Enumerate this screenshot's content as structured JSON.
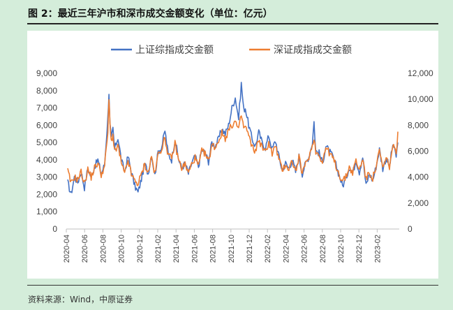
{
  "figure_title": "图 2：最近三年沪市和深市成交金额变化（单位：亿元）",
  "source_note": "资料来源：Wind，中原证券",
  "colors": {
    "sh": "#4472c4",
    "sz": "#ed7d31",
    "background": "#d4edda"
  },
  "chart_data": {
    "type": "line",
    "title": "",
    "xlabel": "",
    "ylabel_left": "",
    "ylabel_right": "",
    "y_left": {
      "range": [
        0,
        9000
      ],
      "ticks": [
        "0",
        "1,000",
        "2,000",
        "3,000",
        "4,000",
        "5,000",
        "6,000",
        "7,000",
        "8,000",
        "9,000"
      ]
    },
    "y_right": {
      "range": [
        0,
        12000
      ],
      "ticks": [
        "0",
        "2,000",
        "4,000",
        "6,000",
        "8,000",
        "10,000",
        "12,000"
      ]
    },
    "x_ticks": [
      "2020-04",
      "2020-06",
      "2020-08",
      "2020-10",
      "2020-12",
      "2021-02",
      "2021-04",
      "2021-06",
      "2021-08",
      "2021-10",
      "2021-12",
      "2022-02",
      "2022-04",
      "2022-06",
      "2022-08",
      "2022-10",
      "2022-12",
      "2023-02"
    ],
    "legend": [
      "上证综指成交金额",
      "深证成指成交金额"
    ],
    "legend_position": "top-center",
    "series": [
      {
        "name": "上证综指成交金额",
        "axis": "left",
        "anchors": [
          [
            0,
            2700
          ],
          [
            1,
            2000
          ],
          [
            2,
            3000
          ],
          [
            3,
            2700
          ],
          [
            4,
            3300
          ],
          [
            5,
            2400
          ],
          [
            6,
            3500
          ],
          [
            7,
            3000
          ],
          [
            8,
            3600
          ],
          [
            9,
            4000
          ],
          [
            10,
            3200
          ],
          [
            11,
            3700
          ],
          [
            12,
            6500
          ],
          [
            12.3,
            7900
          ],
          [
            12.6,
            6000
          ],
          [
            13,
            5200
          ],
          [
            13.5,
            5800
          ],
          [
            14,
            4600
          ],
          [
            15,
            5300
          ],
          [
            16,
            4000
          ],
          [
            17,
            3300
          ],
          [
            18,
            4200
          ],
          [
            19,
            3300
          ],
          [
            20,
            2500
          ],
          [
            21,
            2100
          ],
          [
            22,
            2900
          ],
          [
            23,
            3800
          ],
          [
            24,
            3200
          ],
          [
            25,
            4300
          ],
          [
            26,
            3100
          ],
          [
            27,
            4500
          ],
          [
            28,
            4700
          ],
          [
            29,
            5700
          ],
          [
            30,
            4300
          ],
          [
            31,
            4000
          ],
          [
            32,
            5200
          ],
          [
            33,
            4100
          ],
          [
            34,
            3500
          ],
          [
            35,
            3800
          ],
          [
            36,
            3200
          ],
          [
            37,
            3800
          ],
          [
            38,
            4200
          ],
          [
            39,
            3600
          ],
          [
            40,
            4600
          ],
          [
            41,
            4400
          ],
          [
            42,
            3900
          ],
          [
            43,
            5000
          ],
          [
            44,
            4800
          ],
          [
            45,
            5200
          ],
          [
            46,
            5800
          ],
          [
            47,
            5500
          ],
          [
            48,
            6000
          ],
          [
            49,
            7000
          ],
          [
            50,
            7600
          ],
          [
            51,
            6400
          ],
          [
            51.8,
            8400
          ],
          [
            52.5,
            6900
          ],
          [
            53,
            7000
          ],
          [
            54,
            6000
          ],
          [
            55,
            5200
          ],
          [
            56,
            4800
          ],
          [
            57,
            5600
          ],
          [
            58,
            5000
          ],
          [
            59,
            4700
          ],
          [
            60,
            5400
          ],
          [
            61,
            4600
          ],
          [
            62,
            5100
          ],
          [
            63,
            4200
          ],
          [
            64,
            3400
          ],
          [
            65,
            3800
          ],
          [
            66,
            3500
          ],
          [
            67,
            4000
          ],
          [
            68,
            3300
          ],
          [
            69,
            4200
          ],
          [
            70,
            3200
          ],
          [
            71,
            3800
          ],
          [
            72,
            4200
          ],
          [
            73,
            5000
          ],
          [
            73.5,
            6200
          ],
          [
            74,
            4500
          ],
          [
            75,
            4400
          ],
          [
            76,
            3800
          ],
          [
            77,
            4800
          ],
          [
            78,
            4500
          ],
          [
            79,
            4200
          ],
          [
            80,
            3700
          ],
          [
            81,
            3100
          ],
          [
            82,
            2500
          ],
          [
            83,
            2900
          ],
          [
            84,
            3600
          ],
          [
            85,
            3200
          ],
          [
            86,
            4000
          ],
          [
            87,
            3300
          ],
          [
            88,
            4200
          ],
          [
            89,
            2500
          ],
          [
            90,
            3200
          ],
          [
            91,
            2800
          ],
          [
            92,
            3600
          ],
          [
            93,
            4600
          ],
          [
            94,
            3500
          ],
          [
            95,
            4100
          ],
          [
            96,
            3600
          ],
          [
            97,
            4900
          ],
          [
            98,
            4200
          ],
          [
            98.5,
            5000
          ]
        ]
      },
      {
        "name": "深证成指成交金额",
        "axis": "right",
        "anchors": [
          [
            0,
            4500
          ],
          [
            1,
            3500
          ],
          [
            2,
            4000
          ],
          [
            3,
            3800
          ],
          [
            4,
            4400
          ],
          [
            5,
            3500
          ],
          [
            6,
            4600
          ],
          [
            7,
            4000
          ],
          [
            8,
            4700
          ],
          [
            9,
            5100
          ],
          [
            10,
            4200
          ],
          [
            11,
            4800
          ],
          [
            12,
            7500
          ],
          [
            12.3,
            10000
          ],
          [
            12.6,
            8200
          ],
          [
            13,
            6800
          ],
          [
            13.5,
            7200
          ],
          [
            14,
            5900
          ],
          [
            15,
            6400
          ],
          [
            16,
            5100
          ],
          [
            17,
            4200
          ],
          [
            18,
            5300
          ],
          [
            19,
            4200
          ],
          [
            20,
            3700
          ],
          [
            21,
            3500
          ],
          [
            22,
            4200
          ],
          [
            23,
            5000
          ],
          [
            24,
            4300
          ],
          [
            25,
            5600
          ],
          [
            26,
            4200
          ],
          [
            27,
            5800
          ],
          [
            28,
            6200
          ],
          [
            29,
            7000
          ],
          [
            30,
            5700
          ],
          [
            31,
            5400
          ],
          [
            32,
            6600
          ],
          [
            33,
            5400
          ],
          [
            34,
            4700
          ],
          [
            35,
            5000
          ],
          [
            36,
            4300
          ],
          [
            37,
            5000
          ],
          [
            38,
            5500
          ],
          [
            39,
            4800
          ],
          [
            40,
            6000
          ],
          [
            41,
            5800
          ],
          [
            42,
            5200
          ],
          [
            43,
            6500
          ],
          [
            44,
            6300
          ],
          [
            45,
            6800
          ],
          [
            46,
            7400
          ],
          [
            47,
            7000
          ],
          [
            48,
            7600
          ],
          [
            49,
            8000
          ],
          [
            50,
            8300
          ],
          [
            51,
            7600
          ],
          [
            51.8,
            8800
          ],
          [
            52.5,
            7800
          ],
          [
            53,
            7900
          ],
          [
            54,
            7200
          ],
          [
            55,
            6300
          ],
          [
            56,
            6000
          ],
          [
            57,
            6900
          ],
          [
            58,
            6300
          ],
          [
            59,
            5900
          ],
          [
            60,
            6700
          ],
          [
            61,
            5800
          ],
          [
            62,
            6400
          ],
          [
            63,
            5400
          ],
          [
            64,
            4500
          ],
          [
            65,
            5000
          ],
          [
            66,
            4600
          ],
          [
            67,
            5300
          ],
          [
            68,
            4400
          ],
          [
            69,
            5500
          ],
          [
            70,
            4300
          ],
          [
            71,
            5000
          ],
          [
            72,
            5600
          ],
          [
            73,
            6400
          ],
          [
            73.5,
            7100
          ],
          [
            74,
            5900
          ],
          [
            75,
            5800
          ],
          [
            76,
            5100
          ],
          [
            77,
            6300
          ],
          [
            78,
            5900
          ],
          [
            79,
            5500
          ],
          [
            80,
            4900
          ],
          [
            81,
            4200
          ],
          [
            82,
            3700
          ],
          [
            83,
            4000
          ],
          [
            84,
            4800
          ],
          [
            85,
            4300
          ],
          [
            86,
            5300
          ],
          [
            87,
            4500
          ],
          [
            88,
            5500
          ],
          [
            89,
            3800
          ],
          [
            90,
            4400
          ],
          [
            91,
            3900
          ],
          [
            92,
            4800
          ],
          [
            93,
            6000
          ],
          [
            94,
            4700
          ],
          [
            95,
            5400
          ],
          [
            96,
            4800
          ],
          [
            97,
            6400
          ],
          [
            98,
            5800
          ],
          [
            98.5,
            7500
          ]
        ]
      }
    ]
  }
}
